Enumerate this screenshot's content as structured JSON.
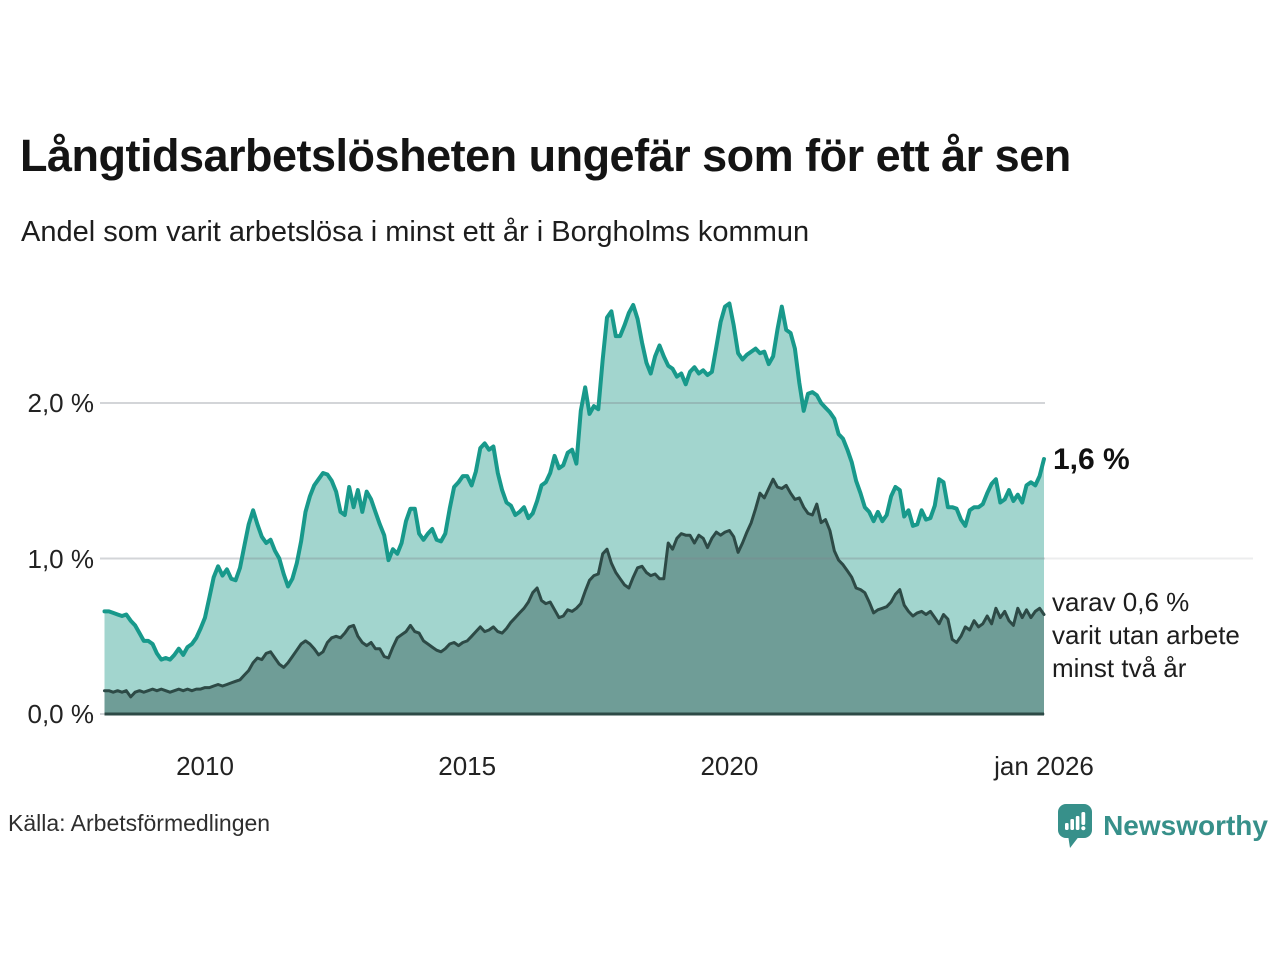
{
  "header": {
    "title": "Långtidsarbetslösheten ungefär som för ett år sen",
    "subtitle": "Andel som varit arbetslösa i minst ett år i Borgholms kommun"
  },
  "chart_data": {
    "type": "area",
    "title": "Långtidsarbetslösheten ungefär som för ett år sen",
    "subtitle": "Andel som varit arbetslösa i minst ett år i Borgholms kommun",
    "unit": "%",
    "frequency": "monthly",
    "x_start": "2008-02",
    "x_end": "2026-01",
    "ylim": [
      0,
      2.8
    ],
    "grid": true,
    "legend_position": "right-annotations",
    "y_gridlines": [
      {
        "value": 2,
        "label": "2,0 %"
      },
      {
        "value": 1,
        "label": "1,0 %"
      },
      {
        "value": 0,
        "label": "0,0 %"
      }
    ],
    "x_ticks": [
      {
        "label": "2010",
        "month_index": 23
      },
      {
        "label": "2015",
        "month_index": 83
      },
      {
        "label": "2020",
        "month_index": 143
      },
      {
        "label": "jan 2026",
        "month_index": 215
      }
    ],
    "series": [
      {
        "name": "Andel som varit arbetslösa i minst ett år",
        "end_label": "1,6 %",
        "line_color": "#18998b",
        "fill_color": "#a2d5ce",
        "values": [
          0.66,
          0.66,
          0.65,
          0.64,
          0.63,
          0.64,
          0.6,
          0.57,
          0.52,
          0.47,
          0.47,
          0.45,
          0.39,
          0.35,
          0.36,
          0.35,
          0.38,
          0.42,
          0.38,
          0.43,
          0.45,
          0.49,
          0.55,
          0.62,
          0.75,
          0.88,
          0.95,
          0.89,
          0.93,
          0.87,
          0.86,
          0.94,
          1.08,
          1.22,
          1.31,
          1.22,
          1.14,
          1.1,
          1.12,
          1.05,
          1.0,
          0.9,
          0.82,
          0.87,
          0.97,
          1.11,
          1.3,
          1.4,
          1.47,
          1.51,
          1.55,
          1.54,
          1.5,
          1.43,
          1.3,
          1.28,
          1.46,
          1.33,
          1.44,
          1.3,
          1.43,
          1.38,
          1.3,
          1.22,
          1.15,
          0.99,
          1.06,
          1.03,
          1.1,
          1.24,
          1.32,
          1.32,
          1.16,
          1.12,
          1.16,
          1.19,
          1.12,
          1.11,
          1.16,
          1.32,
          1.46,
          1.49,
          1.53,
          1.53,
          1.47,
          1.56,
          1.71,
          1.74,
          1.7,
          1.72,
          1.55,
          1.44,
          1.36,
          1.34,
          1.28,
          1.3,
          1.33,
          1.26,
          1.29,
          1.37,
          1.47,
          1.49,
          1.55,
          1.66,
          1.58,
          1.6,
          1.68,
          1.7,
          1.61,
          1.95,
          2.1,
          1.93,
          1.98,
          1.96,
          2.28,
          2.55,
          2.59,
          2.43,
          2.43,
          2.5,
          2.58,
          2.63,
          2.54,
          2.39,
          2.26,
          2.19,
          2.3,
          2.37,
          2.3,
          2.24,
          2.22,
          2.17,
          2.19,
          2.12,
          2.2,
          2.23,
          2.19,
          2.21,
          2.18,
          2.2,
          2.36,
          2.52,
          2.62,
          2.64,
          2.5,
          2.32,
          2.28,
          2.31,
          2.33,
          2.35,
          2.32,
          2.33,
          2.25,
          2.3,
          2.47,
          2.62,
          2.47,
          2.45,
          2.35,
          2.13,
          1.95,
          2.06,
          2.07,
          2.05,
          2.0,
          1.97,
          1.94,
          1.9,
          1.8,
          1.77,
          1.7,
          1.62,
          1.5,
          1.42,
          1.33,
          1.3,
          1.24,
          1.3,
          1.24,
          1.28,
          1.4,
          1.46,
          1.44,
          1.27,
          1.31,
          1.21,
          1.22,
          1.31,
          1.25,
          1.26,
          1.34,
          1.51,
          1.49,
          1.33,
          1.33,
          1.32,
          1.25,
          1.21,
          1.31,
          1.33,
          1.33,
          1.35,
          1.42,
          1.48,
          1.51,
          1.36,
          1.38,
          1.44,
          1.37,
          1.41,
          1.36,
          1.47,
          1.49,
          1.47,
          1.53,
          1.64
        ]
      },
      {
        "name": "varav varit utan arbete minst två år",
        "end_label_lines": [
          "varav 0,6 %",
          "varit utan arbete",
          "minst två år"
        ],
        "line_color": "#2d4a46",
        "fill_color": "#6f9d97",
        "values": [
          0.15,
          0.15,
          0.14,
          0.15,
          0.14,
          0.15,
          0.11,
          0.14,
          0.15,
          0.14,
          0.15,
          0.16,
          0.15,
          0.16,
          0.15,
          0.14,
          0.15,
          0.16,
          0.15,
          0.16,
          0.15,
          0.16,
          0.16,
          0.17,
          0.17,
          0.18,
          0.19,
          0.18,
          0.19,
          0.2,
          0.21,
          0.22,
          0.25,
          0.28,
          0.33,
          0.36,
          0.35,
          0.39,
          0.4,
          0.36,
          0.32,
          0.3,
          0.33,
          0.37,
          0.41,
          0.45,
          0.47,
          0.45,
          0.42,
          0.38,
          0.4,
          0.46,
          0.49,
          0.5,
          0.49,
          0.52,
          0.56,
          0.57,
          0.5,
          0.46,
          0.44,
          0.46,
          0.42,
          0.42,
          0.37,
          0.36,
          0.43,
          0.49,
          0.51,
          0.53,
          0.57,
          0.53,
          0.52,
          0.47,
          0.45,
          0.43,
          0.41,
          0.4,
          0.42,
          0.45,
          0.46,
          0.44,
          0.46,
          0.47,
          0.5,
          0.53,
          0.56,
          0.53,
          0.54,
          0.56,
          0.53,
          0.52,
          0.55,
          0.59,
          0.62,
          0.65,
          0.68,
          0.72,
          0.78,
          0.81,
          0.73,
          0.71,
          0.72,
          0.67,
          0.62,
          0.63,
          0.67,
          0.66,
          0.68,
          0.71,
          0.79,
          0.86,
          0.89,
          0.9,
          1.03,
          1.06,
          0.97,
          0.91,
          0.87,
          0.83,
          0.81,
          0.88,
          0.94,
          0.95,
          0.91,
          0.89,
          0.9,
          0.87,
          0.87,
          1.1,
          1.06,
          1.13,
          1.16,
          1.15,
          1.15,
          1.1,
          1.15,
          1.13,
          1.07,
          1.13,
          1.17,
          1.15,
          1.17,
          1.18,
          1.14,
          1.04,
          1.1,
          1.17,
          1.23,
          1.32,
          1.42,
          1.39,
          1.45,
          1.51,
          1.46,
          1.45,
          1.47,
          1.42,
          1.38,
          1.39,
          1.33,
          1.29,
          1.28,
          1.35,
          1.23,
          1.25,
          1.18,
          1.05,
          0.99,
          0.96,
          0.92,
          0.88,
          0.81,
          0.8,
          0.78,
          0.72,
          0.65,
          0.67,
          0.68,
          0.69,
          0.72,
          0.77,
          0.8,
          0.7,
          0.66,
          0.63,
          0.65,
          0.66,
          0.64,
          0.66,
          0.62,
          0.58,
          0.64,
          0.61,
          0.48,
          0.46,
          0.5,
          0.56,
          0.54,
          0.6,
          0.56,
          0.58,
          0.63,
          0.58,
          0.68,
          0.62,
          0.66,
          0.6,
          0.57,
          0.68,
          0.62,
          0.67,
          0.62,
          0.66,
          0.68,
          0.64
        ]
      }
    ]
  },
  "footer": {
    "source": "Källa: Arbetsförmedlingen",
    "brand": "Newsworthy"
  },
  "colors": {
    "accent_teal": "#18998b",
    "light_fill": "#a2d5ce",
    "dark_fill": "#6f9d97",
    "dark_line": "#2d4a46",
    "brand_teal": "#37908a",
    "gridline": "#dfe1e5"
  }
}
